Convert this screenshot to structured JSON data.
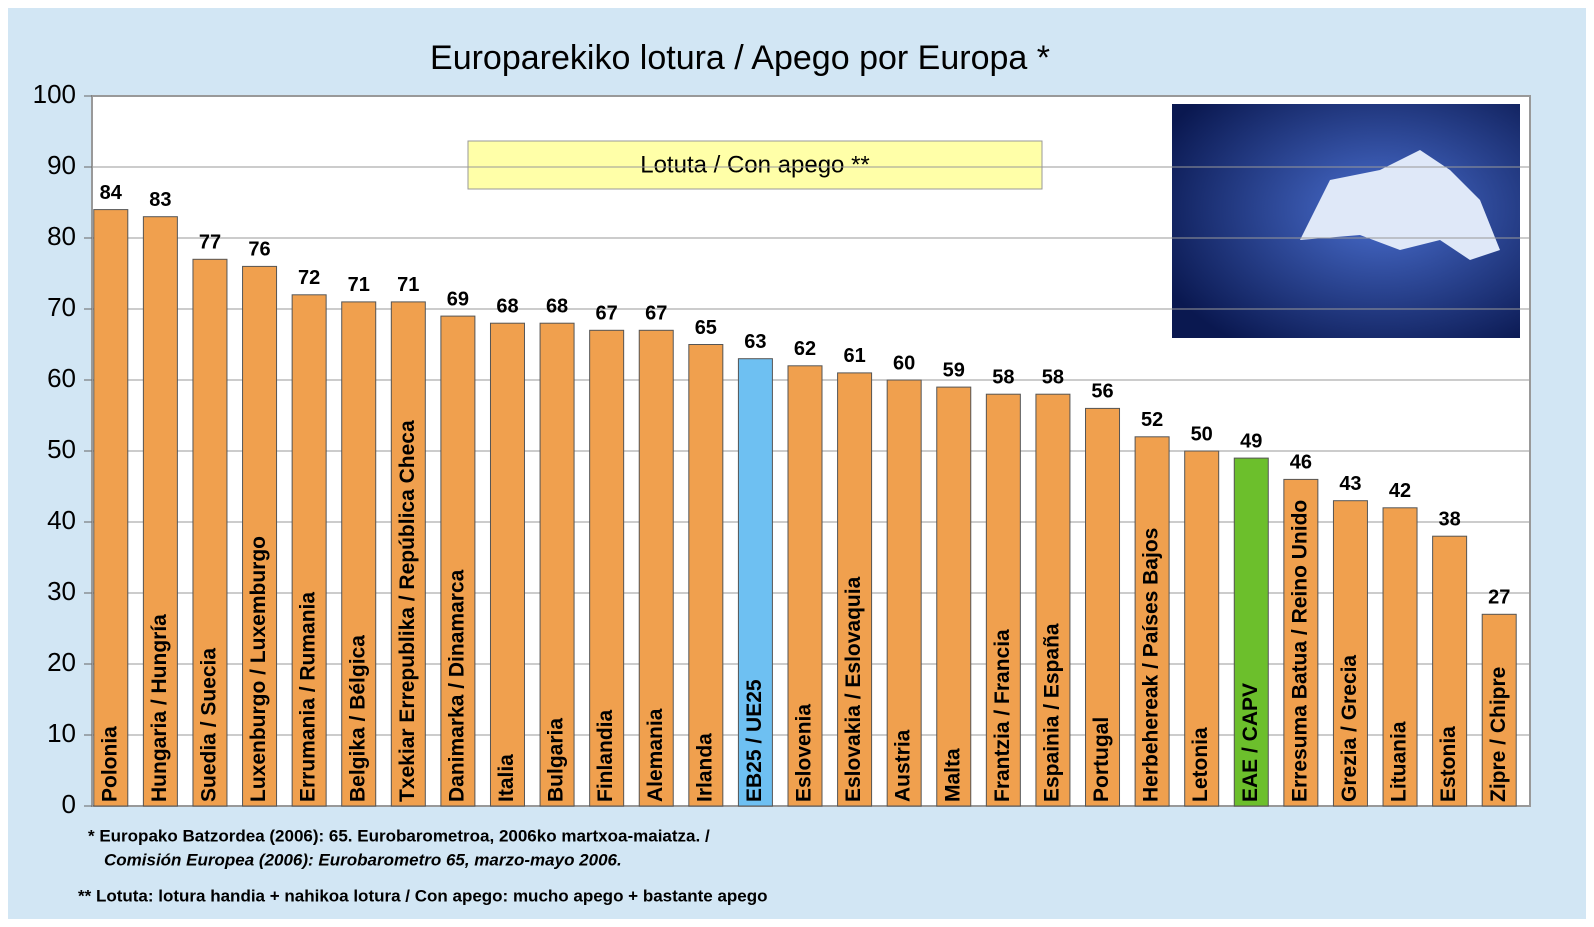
{
  "chart_data": {
    "type": "bar",
    "title": "Europarekiko lotura / Apego por Europa *",
    "legend": "Lotuta / Con apego **",
    "categories": [
      "Polonia",
      "Hungaria / Hungría",
      "Suedia / Suecia",
      "Luxenburgo / Luxemburgo",
      "Errumania / Rumania",
      "Belgika / Bélgica",
      "Txekiar Errepublika / República Checa",
      "Danimarka / Dinamarca",
      "Italia",
      "Bulgaria",
      "Finlandia",
      "Alemania",
      "Irlanda",
      "EB25 / UE25",
      "Eslovenia",
      "Eslovakia / Eslovaquia",
      "Austria",
      "Malta",
      "Frantzia / Francia",
      "Espainia / España",
      "Portugal",
      "Herbehereak / Países Bajos",
      "Letonia",
      "EAE / CAPV",
      "Erresuma Batua / Reino Unido",
      "Grezia / Grecia",
      "Lituania",
      "Estonia",
      "Zipre / Chipre"
    ],
    "values": [
      84,
      83,
      77,
      76,
      72,
      71,
      71,
      69,
      68,
      68,
      67,
      67,
      65,
      63,
      62,
      61,
      60,
      59,
      58,
      58,
      56,
      52,
      50,
      49,
      46,
      43,
      42,
      38,
      27
    ],
    "colors": [
      "#f0a04e",
      "#f0a04e",
      "#f0a04e",
      "#f0a04e",
      "#f0a04e",
      "#f0a04e",
      "#f0a04e",
      "#f0a04e",
      "#f0a04e",
      "#f0a04e",
      "#f0a04e",
      "#f0a04e",
      "#f0a04e",
      "#6ec0f2",
      "#f0a04e",
      "#f0a04e",
      "#f0a04e",
      "#f0a04e",
      "#f0a04e",
      "#f0a04e",
      "#f0a04e",
      "#f0a04e",
      "#f0a04e",
      "#6cbf2c",
      "#f0a04e",
      "#f0a04e",
      "#f0a04e",
      "#f0a04e",
      "#f0a04e"
    ],
    "ylim": [
      0,
      100
    ],
    "yticks": [
      0,
      10,
      20,
      30,
      40,
      50,
      60,
      70,
      80,
      90,
      100
    ],
    "grid": true,
    "notes": [
      "* Europako Batzordea (2006): 65. Eurobarometroa, 2006ko martxoa-maiatza. /",
      "Comisión Europea (2006): Eurobarometro 65, marzo-mayo  2006.",
      "** Lotuta: lotura handia + nahikoa lotura / Con apego: mucho apego + bastante apego"
    ]
  }
}
